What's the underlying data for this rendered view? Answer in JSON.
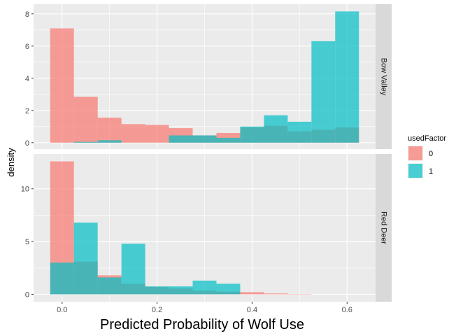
{
  "chart_data": {
    "type": "histogram",
    "xlabel": "Predicted Probability of Wolf Use",
    "ylabel": "density",
    "x_ticks": [
      0.0,
      0.2,
      0.4,
      0.6
    ],
    "x_tick_labels": [
      "0.0",
      "0.2",
      "0.4",
      "0.6"
    ],
    "xlim": [
      -0.06,
      0.66
    ],
    "bins": [
      [
        -0.025,
        0.025
      ],
      [
        0.025,
        0.075
      ],
      [
        0.075,
        0.125
      ],
      [
        0.125,
        0.175
      ],
      [
        0.175,
        0.225
      ],
      [
        0.225,
        0.275
      ],
      [
        0.275,
        0.325
      ],
      [
        0.325,
        0.375
      ],
      [
        0.375,
        0.425
      ],
      [
        0.425,
        0.475
      ],
      [
        0.475,
        0.525
      ],
      [
        0.525,
        0.575
      ],
      [
        0.575,
        0.625
      ]
    ],
    "legend": {
      "title": "usedFactor",
      "position": "right",
      "entries": [
        {
          "label": "0",
          "color": "#F8766D"
        },
        {
          "label": "1",
          "color": "#00BFC4"
        }
      ]
    },
    "panels": [
      {
        "label": "Bow Valley",
        "ylim": [
          -0.4,
          8.6
        ],
        "y_ticks": [
          0,
          2,
          4,
          6,
          8
        ],
        "y_tick_labels": [
          "0",
          "2",
          "4",
          "6",
          "8"
        ],
        "series": [
          {
            "name": "0",
            "color": "#F8766D",
            "values": [
              7.1,
              2.85,
              1.55,
              1.15,
              1.1,
              0.9,
              0.45,
              0.6,
              0.95,
              1.05,
              0.7,
              0.8,
              0.95
            ]
          },
          {
            "name": "1",
            "color": "#00BFC4",
            "values": [
              0.0,
              0.05,
              0.15,
              0.0,
              0.0,
              0.45,
              0.45,
              0.3,
              1.0,
              1.7,
              1.3,
              6.3,
              8.15
            ]
          }
        ]
      },
      {
        "label": "Red Deer",
        "ylim": [
          -0.7,
          13.3
        ],
        "y_ticks": [
          0,
          5,
          10
        ],
        "y_tick_labels": [
          "0",
          "5",
          "10"
        ],
        "series": [
          {
            "name": "0",
            "color": "#F8766D",
            "values": [
              12.6,
              3.1,
              1.8,
              1.0,
              0.7,
              0.55,
              0.35,
              0.25,
              0.2,
              0.08,
              0.03,
              0.0,
              0.0
            ]
          },
          {
            "name": "1",
            "color": "#00BFC4",
            "values": [
              3.0,
              6.8,
              1.6,
              4.8,
              0.75,
              0.75,
              1.3,
              1.0,
              0.0,
              0.0,
              0.0,
              0.0,
              0.0
            ]
          }
        ]
      }
    ]
  }
}
